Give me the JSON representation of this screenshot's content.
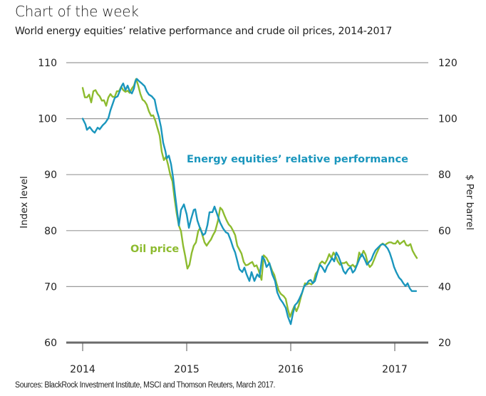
{
  "header": {
    "title": "Chart of the week",
    "subtitle": "World energy equities’ relative performance and crude oil prices, 2014-2017"
  },
  "footer": {
    "source": "Sources: BlackRock Investment Institute, MSCI and Thomson Reuters, March 2017."
  },
  "colors": {
    "equities": "#1a96bd",
    "oil": "#8dbb2f",
    "grid": "#9a9a9a",
    "baseline": "#6b6b6b"
  },
  "chart_data": {
    "type": "line",
    "title": "Chart of the week",
    "subtitle": "World energy equities’ relative performance and crude oil prices, 2014-2017",
    "xlabel": "",
    "ylabel": "Index level",
    "ylabel_right": "$ Per barrel",
    "xlim": [
      2014,
      2017.25
    ],
    "ylim": [
      60,
      110
    ],
    "ylim_right": [
      20,
      120
    ],
    "x_ticks": [
      2014,
      2015,
      2016,
      2017
    ],
    "x_tick_labels": [
      "2014",
      "2015",
      "2016",
      "2017"
    ],
    "y_ticks": [
      60,
      70,
      80,
      90,
      100,
      110
    ],
    "y_tick_labels": [
      "60",
      "70",
      "80",
      "90",
      "100",
      "110"
    ],
    "y_ticks_right": [
      20,
      40,
      60,
      80,
      100,
      120
    ],
    "y_tick_labels_right": [
      "20",
      "40",
      "60",
      "80",
      "100",
      "120"
    ],
    "grid": true,
    "legend": "none (inline annotations)",
    "annotations": [
      {
        "text": "Energy equities’ relative performance",
        "series": "equities",
        "at": [
          2015.0,
          91.5
        ]
      },
      {
        "text": "Oil price",
        "series": "oil",
        "at": [
          2014.46,
          76.5
        ]
      }
    ],
    "series": [
      {
        "name": "Energy equities’ relative performance",
        "key": "equities",
        "axis": "left",
        "x": [
          2014.0,
          2014.027,
          2014.041,
          2014.068,
          2014.096,
          2014.116,
          2014.144,
          2014.164,
          2014.192,
          2014.219,
          2014.247,
          2014.267,
          2014.288,
          2014.308,
          2014.336,
          2014.356,
          2014.377,
          2014.39,
          2014.411,
          2014.432,
          2014.452,
          2014.473,
          2014.493,
          2014.507,
          2014.521,
          2014.548,
          2014.568,
          2014.596,
          2014.616,
          2014.637,
          2014.664,
          2014.692,
          2014.712,
          2014.733,
          2014.753,
          2014.774,
          2014.795,
          2014.808,
          2014.829,
          2014.849,
          2014.87,
          2014.89,
          2014.911,
          2014.925,
          2014.945,
          2014.973,
          2015.0,
          2015.021,
          2015.041,
          2015.068,
          2015.082,
          2015.103,
          2015.13,
          2015.158,
          2015.178,
          2015.199,
          2015.219,
          2015.247,
          2015.267,
          2015.295,
          2015.322,
          2015.349,
          2015.377,
          2015.397,
          2015.425,
          2015.445,
          2015.466,
          2015.486,
          2015.507,
          2015.534,
          2015.555,
          2015.575,
          2015.603,
          2015.623,
          2015.651,
          2015.678,
          2015.699,
          2015.726,
          2015.747,
          2015.767,
          2015.795,
          2015.822,
          2015.849,
          2015.87,
          2015.897,
          2015.925,
          2015.952,
          2015.973,
          2016.0,
          2016.021,
          2016.041,
          2016.062,
          2016.082,
          2016.11,
          2016.13,
          2016.151,
          2016.171,
          2016.192,
          2016.212,
          2016.233,
          2016.26,
          2016.281,
          2016.301,
          2016.329,
          2016.349,
          2016.37,
          2016.397,
          2016.418,
          2016.438,
          2016.459,
          2016.479,
          2016.507,
          2016.527,
          2016.548,
          2016.575,
          2016.596,
          2016.616,
          2016.644,
          2016.664,
          2016.685,
          2016.712,
          2016.733,
          2016.753,
          2016.774,
          2016.795,
          2016.815,
          2016.842,
          2016.863,
          2016.884,
          2016.904,
          2016.932,
          2016.952,
          2016.973,
          2016.993,
          2017.014,
          2017.041,
          2017.062,
          2017.082,
          2017.103,
          2017.123,
          2017.144,
          2017.164,
          2017.185,
          2017.205
        ],
        "y": [
          100.0,
          99.0,
          98.0,
          98.5,
          97.8,
          97.5,
          98.4,
          98.1,
          98.8,
          99.3,
          100.1,
          101.5,
          102.6,
          103.7,
          104.0,
          104.9,
          105.9,
          106.3,
          105.1,
          105.9,
          104.9,
          104.5,
          105.4,
          106.7,
          107.1,
          106.6,
          106.3,
          105.8,
          104.9,
          104.3,
          104.0,
          103.4,
          101.5,
          100.2,
          98.5,
          95.7,
          94.2,
          92.9,
          93.4,
          91.9,
          89.4,
          86.2,
          83.0,
          80.9,
          83.7,
          84.7,
          82.9,
          80.5,
          82.0,
          83.7,
          83.8,
          81.8,
          80.3,
          79.2,
          79.5,
          81.0,
          83.3,
          83.3,
          84.3,
          82.8,
          81.4,
          80.4,
          79.7,
          79.5,
          78.2,
          77.0,
          76.1,
          74.6,
          73.1,
          72.6,
          73.4,
          72.2,
          71.0,
          72.6,
          71.0,
          72.2,
          71.7,
          75.4,
          74.8,
          73.5,
          74.2,
          72.2,
          71.0,
          69.0,
          67.8,
          67.1,
          66.2,
          64.6,
          63.3,
          65.2,
          66.7,
          67.1,
          67.8,
          69.0,
          70.1,
          70.4,
          71.0,
          71.2,
          70.6,
          71.0,
          72.8,
          73.9,
          73.5,
          72.6,
          73.6,
          74.2,
          75.1,
          74.5,
          76.1,
          75.4,
          74.4,
          72.8,
          72.3,
          73.0,
          73.5,
          72.5,
          72.9,
          74.2,
          75.1,
          75.8,
          74.8,
          73.9,
          74.4,
          74.8,
          75.8,
          76.5,
          77.0,
          77.4,
          77.6,
          77.4,
          76.8,
          76.0,
          74.8,
          73.5,
          72.6,
          71.6,
          71.2,
          70.6,
          70.1,
          70.6,
          69.7,
          69.2,
          69.2,
          69.2
        ]
      },
      {
        "name": "Oil price",
        "key": "oil",
        "axis": "right",
        "units": "$ per barrel",
        "x": [
          2014.0,
          2014.021,
          2014.041,
          2014.062,
          2014.082,
          2014.103,
          2014.123,
          2014.144,
          2014.164,
          2014.185,
          2014.205,
          2014.226,
          2014.247,
          2014.267,
          2014.288,
          2014.308,
          2014.329,
          2014.349,
          2014.37,
          2014.39,
          2014.411,
          2014.432,
          2014.452,
          2014.473,
          2014.493,
          2014.514,
          2014.534,
          2014.555,
          2014.575,
          2014.596,
          2014.616,
          2014.637,
          2014.658,
          2014.678,
          2014.699,
          2014.719,
          2014.74,
          2014.76,
          2014.781,
          2014.801,
          2014.822,
          2014.842,
          2014.863,
          2014.884,
          2014.904,
          2014.925,
          2014.945,
          2014.966,
          2014.986,
          2015.007,
          2015.027,
          2015.048,
          2015.068,
          2015.089,
          2015.11,
          2015.13,
          2015.151,
          2015.171,
          2015.192,
          2015.212,
          2015.233,
          2015.253,
          2015.274,
          2015.301,
          2015.322,
          2015.342,
          2015.363,
          2015.384,
          2015.404,
          2015.425,
          2015.445,
          2015.466,
          2015.486,
          2015.507,
          2015.527,
          2015.548,
          2015.568,
          2015.589,
          2015.61,
          2015.63,
          2015.651,
          2015.671,
          2015.692,
          2015.719,
          2015.74,
          2015.767,
          2015.795,
          2015.822,
          2015.842,
          2015.863,
          2015.884,
          2015.904,
          2015.932,
          2015.952,
          2015.973,
          2015.993,
          2016.014,
          2016.034,
          2016.055,
          2016.075,
          2016.096,
          2016.116,
          2016.137,
          2016.158,
          2016.178,
          2016.199,
          2016.219,
          2016.24,
          2016.26,
          2016.281,
          2016.301,
          2016.329,
          2016.349,
          2016.37,
          2016.39,
          2016.411,
          2016.432,
          2016.452,
          2016.473,
          2016.493,
          2016.514,
          2016.534,
          2016.555,
          2016.575,
          2016.596,
          2016.616,
          2016.637,
          2016.658,
          2016.678,
          2016.699,
          2016.719,
          2016.74,
          2016.76,
          2016.781,
          2016.801,
          2016.822,
          2016.842,
          2016.863,
          2016.884,
          2016.904,
          2016.925,
          2016.945,
          2016.966,
          2016.986,
          2017.007,
          2017.027,
          2017.048,
          2017.068,
          2017.089,
          2017.11,
          2017.13,
          2017.151,
          2017.171,
          2017.192,
          2017.212
        ],
        "y": [
          111.0,
          107.6,
          107.6,
          108.6,
          105.8,
          109.8,
          110.2,
          108.8,
          108.0,
          106.4,
          106.6,
          104.6,
          107.6,
          108.8,
          107.8,
          107.8,
          109.8,
          109.8,
          111.4,
          110.2,
          109.6,
          110.0,
          109.2,
          110.8,
          111.8,
          114.2,
          111.8,
          108.8,
          106.8,
          106.2,
          105.0,
          102.6,
          101.0,
          101.2,
          99.2,
          96.6,
          94.0,
          88.2,
          85.2,
          86.4,
          83.4,
          80.0,
          77.6,
          71.2,
          66.0,
          61.8,
          59.8,
          54.6,
          50.8,
          46.4,
          47.8,
          52.0,
          54.6,
          55.8,
          59.8,
          61.0,
          58.4,
          55.8,
          54.6,
          55.8,
          56.8,
          58.4,
          59.8,
          63.6,
          68.2,
          67.4,
          65.4,
          63.6,
          62.2,
          61.4,
          60.0,
          58.4,
          54.6,
          53.2,
          51.8,
          48.8,
          47.6,
          47.8,
          48.4,
          48.8,
          47.2,
          47.6,
          45.8,
          42.4,
          51.2,
          50.2,
          48.2,
          45.6,
          44.2,
          41.2,
          38.6,
          37.4,
          36.6,
          35.6,
          31.8,
          29.2,
          31.2,
          33.0,
          31.2,
          33.0,
          36.0,
          38.6,
          41.2,
          40.8,
          41.2,
          40.8,
          41.6,
          44.6,
          45.6,
          48.2,
          49.0,
          48.2,
          49.6,
          51.6,
          50.2,
          52.2,
          50.8,
          49.0,
          47.8,
          48.4,
          48.4,
          48.8,
          47.6,
          47.2,
          47.8,
          47.0,
          47.8,
          52.2,
          50.8,
          52.8,
          51.4,
          48.4,
          47.0,
          47.8,
          49.6,
          51.6,
          53.2,
          54.8,
          55.4,
          54.8,
          55.4,
          55.8,
          55.8,
          55.4,
          55.4,
          56.4,
          55.2,
          55.8,
          56.4,
          54.8,
          54.6,
          55.2,
          52.8,
          51.4,
          50.2
        ]
      }
    ]
  }
}
